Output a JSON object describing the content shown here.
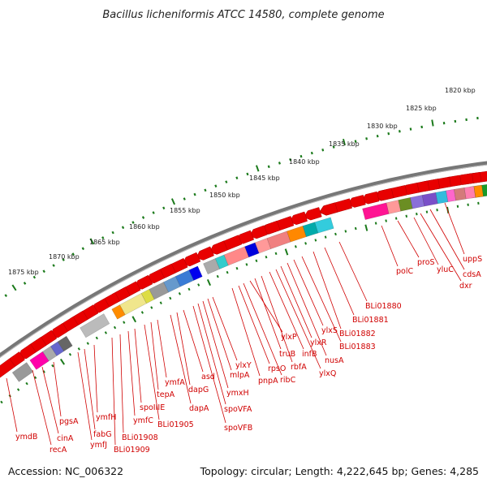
{
  "title": "Bacillus licheniformis ATCC 14580, complete genome",
  "footer": {
    "accession": "Accession: NC_006322",
    "summary": "Topology: circular; Length: 4,222,645 bp; Genes: 4,285"
  },
  "ticks": [
    "1820 kbp",
    "1825 kbp",
    "1830 kbp",
    "1835 kbp",
    "1840 kbp",
    "1845 kbp",
    "1850 kbp",
    "1855 kbp",
    "1860 kbp",
    "1865 kbp",
    "1870 kbp",
    "1875 kbp"
  ],
  "gene_labels": [
    "uppS",
    "cdsA",
    "dxr",
    "yluC",
    "proS",
    "polC",
    "BLi01880",
    "BLi01881",
    "BLi01882",
    "BLi01883",
    "ylxS",
    "nusA",
    "ylxR",
    "ylxQ",
    "infB",
    "rbfA",
    "truB",
    "ylxP",
    "ribC",
    "rpsO",
    "pnpA",
    "ylxY",
    "mlpA",
    "ymxH",
    "spoVFA",
    "spoVFB",
    "asd",
    "dapG",
    "dapA",
    "ymfA",
    "tepA",
    "BLi01905",
    "spoIIIE",
    "ymfC",
    "BLi01908",
    "BLi01909",
    "ymfH",
    "fabG",
    "ymfJ",
    "pgsA",
    "cinA",
    "recA",
    "ymdB"
  ]
}
